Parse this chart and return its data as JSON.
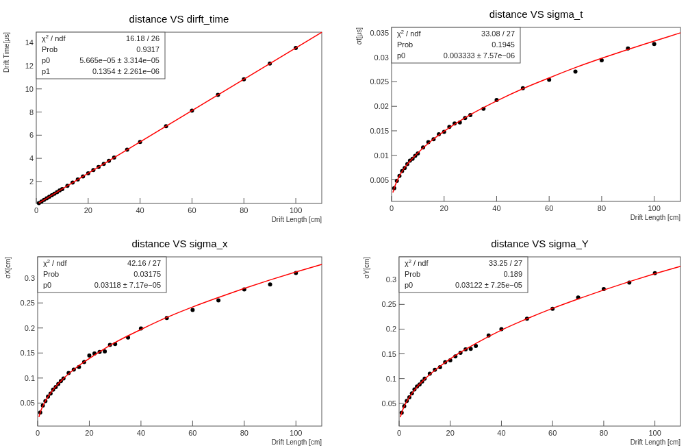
{
  "chart_data": [
    {
      "type": "scatter",
      "title": "distance VS dirft_time",
      "xlabel": "Drift Length [cm]",
      "ylabel": "Drift Time[μs]",
      "xlim": [
        0,
        110
      ],
      "ylim": [
        0.1,
        14.9
      ],
      "xticks": [
        0,
        20,
        40,
        60,
        80,
        100
      ],
      "yticks": [
        2,
        4,
        6,
        8,
        10,
        12,
        14
      ],
      "annotations": [
        "χ$^{2}$ / ndf",
        "16.18 / 26",
        "Prob",
        "0.9317",
        "p0",
        "5.665e−05 ± 3.314e−05",
        "p1",
        "0.1354 ± 2.261e−06"
      ],
      "series": [
        {
          "type": "scatter",
          "marker": "circle",
          "color": "#000000",
          "x": [
            1,
            2,
            3,
            4,
            5,
            6,
            7,
            8,
            9,
            10,
            12,
            14,
            16,
            18,
            20,
            22,
            24,
            26,
            28,
            30,
            35,
            40,
            50,
            60,
            70,
            80,
            90,
            100
          ],
          "values": [
            0.135,
            0.27,
            0.41,
            0.54,
            0.68,
            0.81,
            0.95,
            1.08,
            1.22,
            1.35,
            1.62,
            1.9,
            2.17,
            2.44,
            2.71,
            2.98,
            3.25,
            3.52,
            3.79,
            4.06,
            4.74,
            5.42,
            6.77,
            8.12,
            9.48,
            10.83,
            12.19,
            13.54
          ]
        },
        {
          "type": "line",
          "color": "#ff0000",
          "x": [
            1,
            110
          ],
          "values": [
            0.136,
            14.89
          ]
        }
      ]
    },
    {
      "type": "scatter",
      "title": "distance VS sigma_t",
      "xlabel": "Drift Length [cm]",
      "ylabel": "σt[μs]",
      "xlim": [
        0,
        110
      ],
      "ylim": [
        0.0006,
        0.0361
      ],
      "xticks": [
        0,
        20,
        40,
        60,
        80,
        100
      ],
      "yticks": [
        0.005,
        0.01,
        0.015,
        0.02,
        0.025,
        0.03,
        0.035
      ],
      "annotations": [
        "χ$^{2}$ / ndf",
        "33.08 / 27",
        "Prob",
        "0.1945",
        "p0",
        "0.003333 ± 7.57e−06"
      ],
      "series": [
        {
          "type": "scatter",
          "marker": "circle",
          "color": "#000000",
          "x": [
            1,
            2,
            3,
            4,
            5,
            6,
            7,
            8,
            9,
            10,
            12,
            14,
            16,
            18,
            20,
            22,
            24,
            26,
            28,
            30,
            35,
            40,
            50,
            60,
            70,
            80,
            90,
            100
          ],
          "values": [
            0.0033,
            0.0048,
            0.0058,
            0.0068,
            0.0074,
            0.0082,
            0.0089,
            0.0093,
            0.0099,
            0.0104,
            0.0116,
            0.0127,
            0.0133,
            0.0143,
            0.0148,
            0.0158,
            0.0165,
            0.0167,
            0.0176,
            0.0182,
            0.0195,
            0.0213,
            0.0237,
            0.0254,
            0.0271,
            0.0294,
            0.0318,
            0.0327
          ]
        },
        {
          "type": "line",
          "color": "#ff0000",
          "x": [
            0.5,
            1,
            2,
            3,
            5,
            7,
            10,
            15,
            20,
            30,
            40,
            50,
            60,
            70,
            80,
            90,
            100,
            110
          ],
          "values": [
            0.0024,
            0.0033,
            0.0047,
            0.0058,
            0.0075,
            0.0088,
            0.0105,
            0.0129,
            0.0149,
            0.0183,
            0.0211,
            0.0236,
            0.0258,
            0.0279,
            0.0298,
            0.0316,
            0.0333,
            0.035
          ]
        }
      ]
    },
    {
      "type": "scatter",
      "title": "distance VS sigma_x",
      "xlabel": "Drift Length [cm]",
      "ylabel": "σX[cm]",
      "xlim": [
        0,
        110
      ],
      "ylim": [
        0.004,
        0.342
      ],
      "xticks": [
        0,
        20,
        40,
        60,
        80,
        100
      ],
      "yticks": [
        0.05,
        0.1,
        0.15,
        0.2,
        0.25,
        0.3
      ],
      "annotations": [
        "χ$^{2}$ / ndf",
        "42.16 / 27",
        "Prob",
        "0.03175",
        "p0",
        "0.03118 ± 7.17e−05"
      ],
      "series": [
        {
          "type": "scatter",
          "marker": "circle",
          "color": "#000000",
          "x": [
            1,
            2,
            3,
            4,
            5,
            6,
            7,
            8,
            9,
            10,
            12,
            14,
            16,
            18,
            20,
            22,
            24,
            26,
            28,
            30,
            35,
            40,
            50,
            60,
            70,
            80,
            90,
            100
          ],
          "values": [
            0.031,
            0.045,
            0.054,
            0.063,
            0.069,
            0.077,
            0.082,
            0.088,
            0.094,
            0.099,
            0.11,
            0.117,
            0.122,
            0.132,
            0.145,
            0.149,
            0.152,
            0.153,
            0.166,
            0.168,
            0.181,
            0.199,
            0.22,
            0.236,
            0.255,
            0.277,
            0.287,
            0.31
          ]
        },
        {
          "type": "line",
          "color": "#ff0000",
          "x": [
            0.5,
            1,
            2,
            3,
            5,
            7,
            10,
            15,
            20,
            30,
            40,
            50,
            60,
            70,
            80,
            90,
            100,
            110
          ],
          "values": [
            0.022,
            0.031,
            0.044,
            0.054,
            0.07,
            0.083,
            0.099,
            0.121,
            0.139,
            0.171,
            0.197,
            0.221,
            0.242,
            0.261,
            0.279,
            0.296,
            0.312,
            0.327
          ]
        }
      ]
    },
    {
      "type": "scatter",
      "title": "distance VS sigma_Y",
      "xlabel": "Drift Length [cm]",
      "ylabel": "σY[cm]",
      "xlim": [
        0,
        110
      ],
      "ylim": [
        0.004,
        0.346
      ],
      "xticks": [
        0,
        20,
        40,
        60,
        80,
        100
      ],
      "yticks": [
        0.05,
        0.1,
        0.15,
        0.2,
        0.25,
        0.3
      ],
      "annotations": [
        "χ$^{2}$ / ndf",
        "33.25 / 27",
        "Prob",
        "0.189",
        "p0",
        "0.03122 ± 7.25e−05"
      ],
      "series": [
        {
          "type": "scatter",
          "marker": "circle",
          "color": "#000000",
          "x": [
            1,
            2,
            3,
            4,
            5,
            6,
            7,
            8,
            9,
            10,
            12,
            14,
            16,
            18,
            20,
            22,
            24,
            26,
            28,
            30,
            35,
            40,
            50,
            60,
            70,
            80,
            90,
            100
          ],
          "values": [
            0.031,
            0.044,
            0.055,
            0.062,
            0.07,
            0.078,
            0.084,
            0.088,
            0.094,
            0.1,
            0.11,
            0.118,
            0.123,
            0.133,
            0.137,
            0.145,
            0.152,
            0.159,
            0.16,
            0.166,
            0.187,
            0.2,
            0.221,
            0.241,
            0.264,
            0.281,
            0.294,
            0.313
          ]
        },
        {
          "type": "line",
          "color": "#ff0000",
          "x": [
            0.5,
            1,
            2,
            3,
            5,
            7,
            10,
            15,
            20,
            30,
            40,
            50,
            60,
            70,
            80,
            90,
            100,
            110
          ],
          "values": [
            0.022,
            0.031,
            0.044,
            0.054,
            0.07,
            0.083,
            0.099,
            0.121,
            0.14,
            0.171,
            0.198,
            0.221,
            0.242,
            0.261,
            0.279,
            0.296,
            0.312,
            0.327
          ]
        }
      ]
    }
  ]
}
